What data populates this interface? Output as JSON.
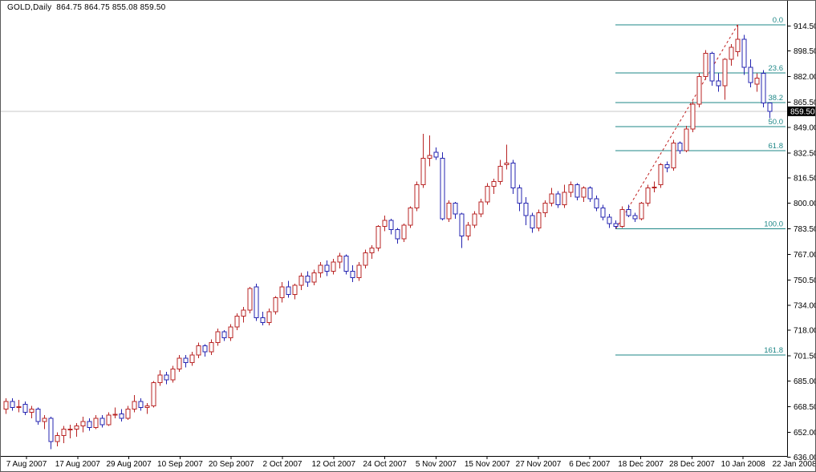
{
  "title": "GOLD,Daily  864.75 864.75 855.08 859.50",
  "symbol": "GOLD",
  "timeframe": "Daily",
  "quote": {
    "open": "864.75",
    "high": "864.75",
    "low": "855.08",
    "close": "859.50"
  },
  "current_price_badge": "859.50",
  "colors": {
    "up_candle": "#b82424",
    "down_candle": "#2424b0",
    "fibonacci": "#1e8787",
    "trendline": "#c02020",
    "current_price_line": "#c9c9c9",
    "axis": "#000000",
    "badge_bg": "#000000",
    "badge_text": "#ffffff",
    "background": "#ffffff"
  },
  "chart_data": {
    "type": "candlestick",
    "title": "GOLD,Daily",
    "grid": false,
    "y_axis_labels": [
      "914.50",
      "898.50",
      "882.00",
      "865.50",
      "849.00",
      "832.50",
      "816.50",
      "800.00",
      "783.50",
      "767.00",
      "750.50",
      "734.00",
      "718.00",
      "701.50",
      "685.00",
      "668.50",
      "652.00",
      "636.00"
    ],
    "x_axis_labels": [
      "7 Aug 2007",
      "17 Aug 2007",
      "29 Aug 2007",
      "10 Sep 2007",
      "20 Sep 2007",
      "2 Oct 2007",
      "12 Oct 2007",
      "24 Oct 2007",
      "5 Nov 2007",
      "15 Nov 2007",
      "27 Nov 2007",
      "6 Dec 2007",
      "18 Dec 2007",
      "28 Dec 2007",
      "10 Jan 2008",
      "22 Jan 2008"
    ],
    "y_range": [
      636.0,
      914.5
    ],
    "current_price": 859.5,
    "last_candle_ohlc": [
      864.75,
      864.75,
      855.08,
      859.5
    ],
    "fibonacci": {
      "high": 915.5,
      "low": 783.5,
      "levels": [
        {
          "pct": 0,
          "label": "0.0"
        },
        {
          "pct": 23.6,
          "label": "23.6"
        },
        {
          "pct": 38.2,
          "label": "38.2"
        },
        {
          "pct": 50,
          "label": "50.0"
        },
        {
          "pct": 61.8,
          "label": "61.8"
        },
        {
          "pct": 100,
          "label": "100.0"
        },
        {
          "pct": 161.8,
          "label": "161.8"
        }
      ]
    },
    "trendline": {
      "from_index": 95,
      "from_price": 783.5,
      "to_index": 114,
      "to_price": 915.5,
      "style": "dashed"
    },
    "candles": [
      [
        667,
        674,
        664,
        672
      ],
      [
        672,
        674,
        666,
        668
      ],
      [
        668,
        673,
        665,
        668.5
      ],
      [
        670,
        672,
        663,
        665
      ],
      [
        665,
        669,
        661,
        667
      ],
      [
        667,
        668,
        657,
        659
      ],
      [
        659,
        663,
        654,
        661
      ],
      [
        661,
        662,
        641,
        646
      ],
      [
        646,
        652,
        643,
        650
      ],
      [
        650,
        656,
        645,
        654
      ],
      [
        654,
        657,
        648,
        654
      ],
      [
        654,
        658,
        649,
        656
      ],
      [
        656,
        662,
        652,
        659
      ],
      [
        659,
        661,
        653,
        655
      ],
      [
        655,
        663,
        654,
        661
      ],
      [
        661,
        663,
        655,
        657
      ],
      [
        657,
        665,
        656,
        663
      ],
      [
        663,
        668,
        661,
        663.5
      ],
      [
        664,
        667,
        659,
        661
      ],
      [
        661,
        669,
        660,
        667
      ],
      [
        667,
        676,
        665,
        672
      ],
      [
        672,
        674,
        666,
        668
      ],
      [
        668,
        671,
        664,
        669
      ],
      [
        669,
        685,
        668,
        684
      ],
      [
        684,
        692,
        682,
        689
      ],
      [
        689,
        691,
        683,
        686
      ],
      [
        686,
        695,
        684,
        693
      ],
      [
        693,
        702,
        691,
        700
      ],
      [
        700,
        702,
        694,
        697
      ],
      [
        697,
        704,
        695,
        702
      ],
      [
        702,
        710,
        700,
        708
      ],
      [
        708,
        709,
        701,
        704
      ],
      [
        704,
        712,
        702,
        710
      ],
      [
        710,
        719,
        708,
        717
      ],
      [
        717,
        718,
        711,
        713
      ],
      [
        713,
        722,
        711,
        720
      ],
      [
        720,
        729,
        718,
        727
      ],
      [
        727,
        733,
        723,
        731
      ],
      [
        731,
        746,
        729,
        745
      ],
      [
        746,
        748,
        724,
        726
      ],
      [
        726,
        730,
        721,
        723
      ],
      [
        723,
        732,
        721,
        730
      ],
      [
        730,
        740,
        728,
        739
      ],
      [
        739,
        749,
        736,
        746
      ],
      [
        746,
        750,
        739,
        741
      ],
      [
        741,
        748,
        738,
        747
      ],
      [
        747,
        755,
        744,
        753
      ],
      [
        753,
        756,
        746,
        749
      ],
      [
        749,
        757,
        747,
        755
      ],
      [
        755,
        762,
        752,
        760
      ],
      [
        760,
        763,
        753,
        756
      ],
      [
        756,
        764,
        754,
        762
      ],
      [
        762,
        768,
        758,
        766
      ],
      [
        766,
        767,
        754,
        756
      ],
      [
        756,
        760,
        749,
        752
      ],
      [
        752,
        762,
        750,
        760
      ],
      [
        760,
        770,
        758,
        768
      ],
      [
        768,
        773,
        764,
        771
      ],
      [
        771,
        786,
        769,
        785
      ],
      [
        785,
        792,
        782,
        789
      ],
      [
        789,
        790,
        780,
        783
      ],
      [
        783,
        784,
        774,
        777
      ],
      [
        777,
        787,
        775,
        786
      ],
      [
        786,
        798,
        784,
        797
      ],
      [
        797,
        814,
        795,
        812
      ],
      [
        812,
        845,
        810,
        829
      ],
      [
        829,
        844,
        824,
        831
      ],
      [
        833,
        836,
        828,
        830
      ],
      [
        829,
        833,
        789,
        790
      ],
      [
        790,
        802,
        788,
        800
      ],
      [
        800,
        801,
        790,
        793
      ],
      [
        793,
        794,
        771,
        779
      ],
      [
        779,
        788,
        776,
        786
      ],
      [
        786,
        795,
        784,
        793
      ],
      [
        793,
        803,
        791,
        801
      ],
      [
        801,
        813,
        799,
        811
      ],
      [
        811,
        816,
        806,
        814
      ],
      [
        814,
        828,
        812,
        824
      ],
      [
        825,
        838,
        822,
        826
      ],
      [
        826,
        828,
        806,
        810
      ],
      [
        810,
        812,
        795,
        800
      ],
      [
        800,
        804,
        786,
        792
      ],
      [
        792,
        794,
        781,
        784
      ],
      [
        784,
        796,
        782,
        794
      ],
      [
        794,
        802,
        791,
        800
      ],
      [
        800,
        810,
        798,
        806
      ],
      [
        806,
        808,
        797,
        799
      ],
      [
        799,
        812,
        797,
        807
      ],
      [
        807,
        814,
        804,
        812
      ],
      [
        812,
        813,
        802,
        804
      ],
      [
        804,
        811,
        801,
        810
      ],
      [
        810,
        811,
        801,
        803
      ],
      [
        803,
        805,
        795,
        797
      ],
      [
        797,
        799,
        789,
        791
      ],
      [
        791,
        793,
        784,
        787
      ],
      [
        787,
        789,
        783.5,
        785
      ],
      [
        785,
        798,
        784,
        796
      ],
      [
        796,
        799,
        791,
        792
      ],
      [
        792,
        794,
        788,
        790
      ],
      [
        790,
        801,
        789,
        800
      ],
      [
        800,
        812,
        798,
        810
      ],
      [
        810,
        814,
        807,
        810.5
      ],
      [
        812,
        826,
        810,
        825
      ],
      [
        825,
        827,
        820,
        823
      ],
      [
        823,
        841,
        821,
        839
      ],
      [
        839,
        840,
        832,
        834
      ],
      [
        834,
        850,
        833,
        848
      ],
      [
        848,
        866,
        846,
        864
      ],
      [
        864,
        884,
        862,
        882
      ],
      [
        882,
        899,
        880,
        897
      ],
      [
        897,
        898,
        876,
        879
      ],
      [
        879,
        884,
        872,
        876
      ],
      [
        876,
        894,
        867,
        893
      ],
      [
        893,
        903,
        889,
        901
      ],
      [
        898,
        915.5,
        895,
        906
      ],
      [
        906,
        909,
        883,
        888
      ],
      [
        888,
        893,
        875,
        878
      ],
      [
        877,
        884,
        872,
        881
      ],
      [
        884,
        886,
        862,
        865
      ],
      [
        864.75,
        864.75,
        855.08,
        859.5
      ]
    ]
  }
}
